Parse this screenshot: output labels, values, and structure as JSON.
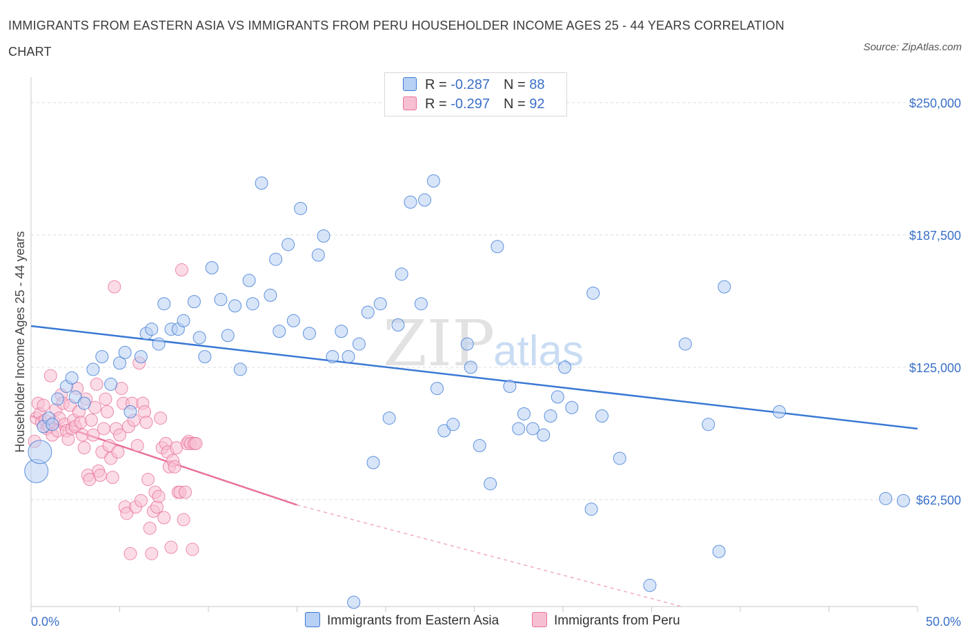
{
  "title": "IMMIGRANTS FROM EASTERN ASIA VS IMMIGRANTS FROM PERU HOUSEHOLDER INCOME AGES 25 - 44 YEARS CORRELATION CHART",
  "source": "Source: ZipAtlas.com",
  "watermark": {
    "zip": "ZIP",
    "atlas": "atlas"
  },
  "legend": {
    "series1": {
      "r_label": "R = ",
      "r_value": "-0.287",
      "n_label": "N = ",
      "n_value": "88"
    },
    "series2": {
      "r_label": "R = ",
      "r_value": "-0.297",
      "n_label": "N = ",
      "n_value": "92"
    }
  },
  "bottom_legend": {
    "series1": "Immigrants from Eastern Asia",
    "series2": "Immigrants from Peru"
  },
  "colors": {
    "blue": "#3a78d4",
    "blue_fill": "#b8d0f4",
    "pink": "#e8709a",
    "pink_fill": "#f7c0d2",
    "axis_text": "#3a6fc8"
  },
  "chart_data": {
    "type": "scatter",
    "title": "IMMIGRANTS FROM EASTERN ASIA VS IMMIGRANTS FROM PERU HOUSEHOLDER INCOME AGES 25 - 44 YEARS CORRELATION CHART",
    "xlabel": "",
    "ylabel": "Householder Income Ages 25 - 44 years",
    "xlim": [
      0,
      50
    ],
    "ylim": [
      12000,
      262000
    ],
    "x_tick_labels": [
      "0.0%",
      "50.0%"
    ],
    "y_ticks": [
      62500,
      125000,
      187500,
      250000
    ],
    "y_tick_labels": [
      "$62,500",
      "$125,000",
      "$187,500",
      "$250,000"
    ],
    "series": [
      {
        "name": "Immigrants from Eastern Asia",
        "color": "#3a78d4",
        "trend": {
          "x": [
            0,
            50
          ],
          "y": [
            144500,
            96000
          ]
        },
        "points": [
          [
            0.3,
            76000,
            2
          ],
          [
            0.5,
            85000,
            2
          ],
          [
            0.7,
            97000,
            1
          ],
          [
            1.0,
            101000,
            1
          ],
          [
            1.2,
            98000,
            1
          ],
          [
            1.5,
            110000,
            1
          ],
          [
            2.0,
            116000,
            1
          ],
          [
            2.3,
            120000,
            1
          ],
          [
            2.5,
            111000,
            1
          ],
          [
            3.0,
            108000,
            1
          ],
          [
            3.5,
            124000,
            1
          ],
          [
            4.0,
            130000,
            1
          ],
          [
            4.5,
            117000,
            1
          ],
          [
            5.0,
            127000,
            1
          ],
          [
            5.3,
            132000,
            1
          ],
          [
            5.6,
            104000,
            1
          ],
          [
            6.2,
            130000,
            1
          ],
          [
            6.5,
            141000,
            1
          ],
          [
            6.8,
            143000,
            1
          ],
          [
            7.2,
            136000,
            1
          ],
          [
            7.5,
            155000,
            1
          ],
          [
            7.9,
            143000,
            1
          ],
          [
            8.3,
            143000,
            1
          ],
          [
            8.6,
            147000,
            1
          ],
          [
            9.2,
            156000,
            1
          ],
          [
            9.5,
            139000,
            1
          ],
          [
            9.8,
            130000,
            1
          ],
          [
            10.2,
            172000,
            1
          ],
          [
            10.7,
            157000,
            1
          ],
          [
            11.1,
            140000,
            1
          ],
          [
            11.5,
            154000,
            1
          ],
          [
            11.8,
            124000,
            1
          ],
          [
            12.3,
            166000,
            1
          ],
          [
            12.5,
            155000,
            1
          ],
          [
            13.0,
            212000,
            1
          ],
          [
            13.5,
            159000,
            1
          ],
          [
            13.8,
            176000,
            1
          ],
          [
            14.0,
            142000,
            1
          ],
          [
            14.5,
            183000,
            1
          ],
          [
            14.8,
            147000,
            1
          ],
          [
            15.2,
            200000,
            1
          ],
          [
            15.7,
            141000,
            1
          ],
          [
            16.2,
            178000,
            1
          ],
          [
            16.5,
            187000,
            1
          ],
          [
            17.0,
            130000,
            1
          ],
          [
            17.5,
            142000,
            1
          ],
          [
            17.9,
            130000,
            1
          ],
          [
            18.2,
            14000,
            1
          ],
          [
            18.5,
            136000,
            1
          ],
          [
            19.0,
            151000,
            1
          ],
          [
            19.3,
            80000,
            1
          ],
          [
            19.7,
            155000,
            1
          ],
          [
            20.2,
            101000,
            1
          ],
          [
            20.7,
            145000,
            1
          ],
          [
            20.9,
            169000,
            1
          ],
          [
            21.4,
            203000,
            1
          ],
          [
            22.0,
            155000,
            1
          ],
          [
            22.2,
            204000,
            1
          ],
          [
            22.7,
            213000,
            1
          ],
          [
            22.9,
            115000,
            1
          ],
          [
            23.3,
            95000,
            1
          ],
          [
            23.8,
            98000,
            1
          ],
          [
            24.6,
            136000,
            1
          ],
          [
            24.8,
            125000,
            1
          ],
          [
            25.3,
            88000,
            1
          ],
          [
            25.9,
            70000,
            1
          ],
          [
            26.3,
            182000,
            1
          ],
          [
            27.0,
            116000,
            1
          ],
          [
            27.5,
            96000,
            1
          ],
          [
            27.8,
            103000,
            1
          ],
          [
            28.3,
            96000,
            1
          ],
          [
            28.9,
            93000,
            1
          ],
          [
            29.3,
            102000,
            1
          ],
          [
            29.7,
            111000,
            1
          ],
          [
            30.1,
            125000,
            1
          ],
          [
            30.5,
            106000,
            1
          ],
          [
            31.6,
            58000,
            1
          ],
          [
            31.7,
            160000,
            1
          ],
          [
            32.2,
            102000,
            1
          ],
          [
            33.2,
            82000,
            1
          ],
          [
            34.9,
            22000,
            1
          ],
          [
            36.9,
            136000,
            1
          ],
          [
            38.2,
            98000,
            1
          ],
          [
            38.8,
            38000,
            1
          ],
          [
            39.1,
            163000,
            1
          ],
          [
            42.2,
            104000,
            1
          ],
          [
            48.2,
            63000,
            1
          ],
          [
            49.2,
            62000,
            1
          ]
        ]
      },
      {
        "name": "Immigrants from Peru",
        "color": "#e8709a",
        "trend": {
          "x": [
            0,
            15
          ],
          "y": [
            102000,
            60000
          ],
          "dashed_x": [
            15,
            36.7
          ],
          "dashed_y": [
            60000,
            0
          ]
        },
        "points": [
          [
            0.2,
            90000,
            1
          ],
          [
            0.3,
            101000,
            1
          ],
          [
            0.4,
            108000,
            1
          ],
          [
            0.5,
            103000,
            1
          ],
          [
            0.6,
            99000,
            1
          ],
          [
            0.7,
            107000,
            1
          ],
          [
            0.8,
            100000,
            1
          ],
          [
            0.9,
            96000,
            1
          ],
          [
            1.0,
            97000,
            1
          ],
          [
            1.1,
            121000,
            1
          ],
          [
            1.2,
            93000,
            1
          ],
          [
            1.3,
            99000,
            1
          ],
          [
            1.4,
            105000,
            1
          ],
          [
            1.5,
            95000,
            1
          ],
          [
            1.6,
            101000,
            1
          ],
          [
            1.7,
            112000,
            1
          ],
          [
            1.8,
            108000,
            1
          ],
          [
            1.9,
            98000,
            1
          ],
          [
            2.0,
            95000,
            1
          ],
          [
            2.1,
            91000,
            1
          ],
          [
            2.2,
            107000,
            1
          ],
          [
            2.3,
            96000,
            1
          ],
          [
            2.4,
            100000,
            1
          ],
          [
            2.5,
            97000,
            1
          ],
          [
            2.6,
            115000,
            1
          ],
          [
            2.7,
            104000,
            1
          ],
          [
            2.8,
            99000,
            1
          ],
          [
            2.9,
            93000,
            1
          ],
          [
            3.0,
            87000,
            1
          ],
          [
            3.1,
            110000,
            1
          ],
          [
            3.2,
            74000,
            1
          ],
          [
            3.3,
            72000,
            1
          ],
          [
            3.4,
            100000,
            1
          ],
          [
            3.5,
            93000,
            1
          ],
          [
            3.6,
            106000,
            1
          ],
          [
            3.7,
            117000,
            1
          ],
          [
            3.8,
            76000,
            1
          ],
          [
            3.9,
            74000,
            1
          ],
          [
            4.0,
            85000,
            1
          ],
          [
            4.1,
            96000,
            1
          ],
          [
            4.2,
            110000,
            1
          ],
          [
            4.3,
            104000,
            1
          ],
          [
            4.4,
            88000,
            1
          ],
          [
            4.5,
            82000,
            1
          ],
          [
            4.6,
            73000,
            1
          ],
          [
            4.7,
            163000,
            1
          ],
          [
            4.8,
            96000,
            1
          ],
          [
            4.9,
            85000,
            1
          ],
          [
            5.0,
            93000,
            1
          ],
          [
            5.1,
            115000,
            1
          ],
          [
            5.2,
            108000,
            1
          ],
          [
            5.3,
            59000,
            1
          ],
          [
            5.4,
            56000,
            1
          ],
          [
            5.5,
            97000,
            1
          ],
          [
            5.6,
            37000,
            1
          ],
          [
            5.7,
            108000,
            1
          ],
          [
            5.8,
            100000,
            1
          ],
          [
            5.9,
            59000,
            1
          ],
          [
            6.0,
            88000,
            1
          ],
          [
            6.1,
            127000,
            1
          ],
          [
            6.2,
            62000,
            1
          ],
          [
            6.3,
            108000,
            1
          ],
          [
            6.4,
            104000,
            1
          ],
          [
            6.5,
            99000,
            1
          ],
          [
            6.6,
            72000,
            1
          ],
          [
            6.7,
            49000,
            1
          ],
          [
            6.8,
            37000,
            1
          ],
          [
            6.9,
            57000,
            1
          ],
          [
            7.0,
            66000,
            1
          ],
          [
            7.1,
            59000,
            1
          ],
          [
            7.2,
            64000,
            1
          ],
          [
            7.3,
            101000,
            1
          ],
          [
            7.4,
            87000,
            1
          ],
          [
            7.5,
            54000,
            1
          ],
          [
            7.6,
            89000,
            1
          ],
          [
            7.7,
            85000,
            1
          ],
          [
            7.8,
            78000,
            1
          ],
          [
            7.9,
            40000,
            1
          ],
          [
            8.0,
            81000,
            1
          ],
          [
            8.1,
            78000,
            1
          ],
          [
            8.2,
            87000,
            1
          ],
          [
            8.3,
            66000,
            1
          ],
          [
            8.4,
            66000,
            1
          ],
          [
            8.5,
            171000,
            1
          ],
          [
            8.6,
            53000,
            1
          ],
          [
            8.7,
            66000,
            1
          ],
          [
            8.8,
            89000,
            1
          ],
          [
            8.9,
            90000,
            1
          ],
          [
            9.0,
            89000,
            1
          ],
          [
            9.1,
            39000,
            1
          ],
          [
            9.2,
            89000,
            1
          ],
          [
            9.3,
            89000,
            1
          ]
        ]
      }
    ]
  }
}
